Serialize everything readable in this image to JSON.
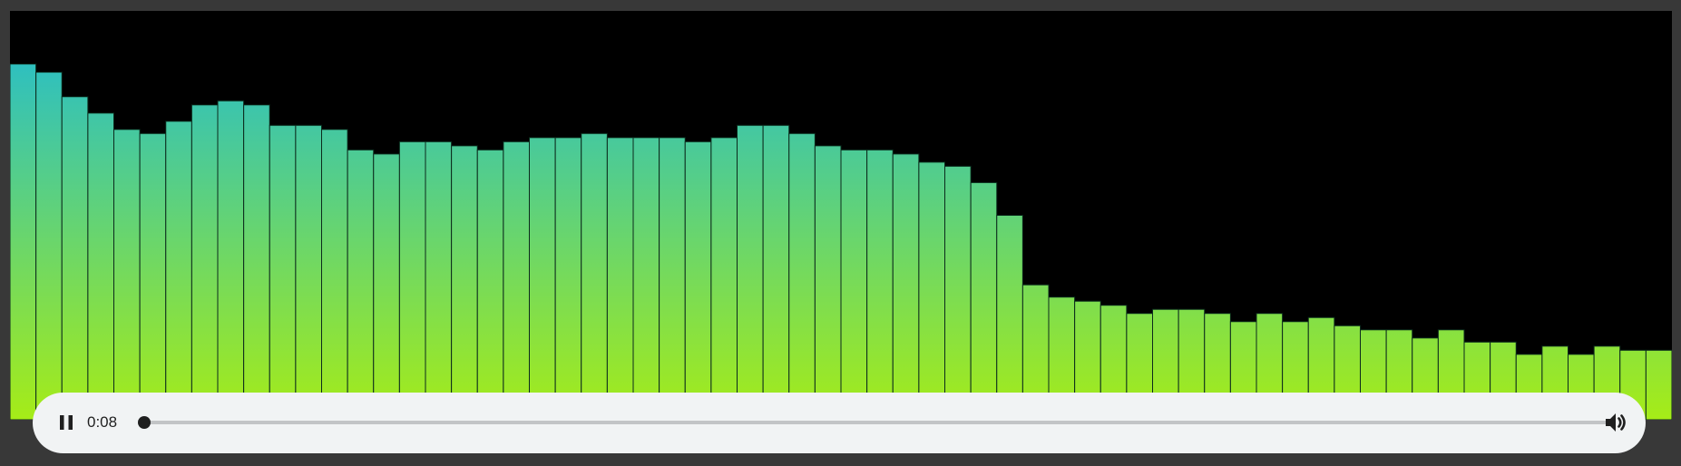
{
  "visualizer": {
    "gradient_top": "#1db9d8",
    "gradient_bottom": "#a6ec17",
    "bar_border": "#0b2a1c",
    "level_max": 100,
    "levels": [
      87,
      85,
      79,
      75,
      71,
      70,
      73,
      77,
      78,
      77,
      72,
      72,
      71,
      66,
      65,
      68,
      68,
      67,
      66,
      68,
      69,
      69,
      70,
      69,
      69,
      69,
      68,
      69,
      72,
      72,
      70,
      67,
      66,
      66,
      65,
      63,
      62,
      58,
      50,
      33,
      30,
      29,
      28,
      26,
      27,
      27,
      26,
      24,
      26,
      24,
      25,
      23,
      22,
      22,
      20,
      22,
      19,
      19,
      16,
      18,
      16,
      18,
      17,
      17
    ]
  },
  "player": {
    "play_state": "playing",
    "play_icon": "pause-icon",
    "current_time": "0:08",
    "progress_fraction": 0.003,
    "volume_icon": "volume-icon",
    "track_color": "#c2c4c6",
    "fill_color": "#1f1f1f",
    "background": "#f1f3f4"
  }
}
